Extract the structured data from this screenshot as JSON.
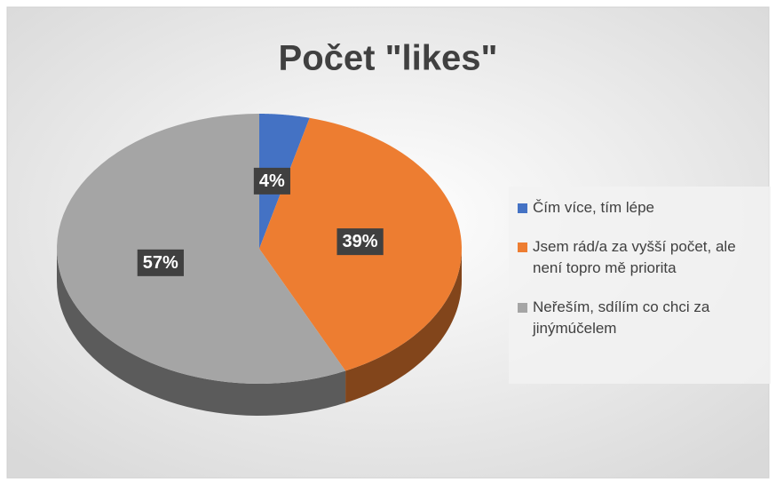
{
  "chart_data": {
    "type": "pie",
    "title": "Počet \"likes\"",
    "categories": [
      "Čím více, tím lépe",
      "Jsem rád/a za vyšší počet, ale není topro mě priorita",
      "Neřeším, sdílím co chci za jinýmúčelem"
    ],
    "values": [
      4,
      39,
      57
    ],
    "value_labels": [
      "4%",
      "39%",
      "57%"
    ],
    "colors": [
      "#4472c4",
      "#ed7d31",
      "#a5a5a5"
    ],
    "legend": "right"
  }
}
